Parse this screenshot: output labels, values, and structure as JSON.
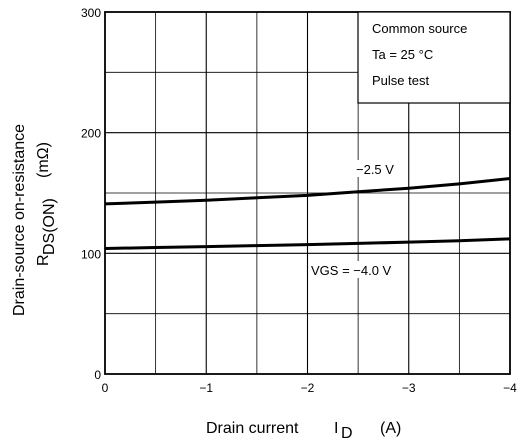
{
  "chart_data": {
    "type": "line",
    "xlabel": "Drain current",
    "xlabel_symbol": "I",
    "xlabel_sub": "D",
    "xlabel_unit": "(A)",
    "ylabel_line1": "Drain-source on-resistance",
    "ylabel_symbol": "R",
    "ylabel_sub": "DS(ON)",
    "ylabel_unit": "(mΩ)",
    "xlim": [
      0,
      -4
    ],
    "ylim": [
      0,
      300
    ],
    "x_ticks": [
      0,
      -1,
      -2,
      -3,
      -4
    ],
    "x_tick_labels": [
      "0",
      "−1",
      "−2",
      "−3",
      "−4"
    ],
    "y_ticks": [
      0,
      100,
      200,
      300
    ],
    "y_tick_labels": [
      "0",
      "100",
      "200",
      "300"
    ],
    "grid": true,
    "conditions": [
      "Common source",
      "Ta = 25 °C",
      "Pulse test"
    ],
    "series": [
      {
        "name": "−2.5 V",
        "x": [
          0,
          -0.5,
          -1,
          -1.5,
          -2,
          -2.5,
          -3,
          -3.5,
          -4
        ],
        "values": [
          141,
          142.5,
          144,
          146,
          148,
          151,
          154,
          157.5,
          162
        ]
      },
      {
        "name": "VGS = −4.0 V",
        "x": [
          0,
          -0.5,
          -1,
          -1.5,
          -2,
          -2.5,
          -3,
          -3.5,
          -4
        ],
        "values": [
          104,
          104.8,
          105.6,
          106.4,
          107.2,
          108.2,
          109.3,
          110.5,
          112
        ]
      }
    ]
  }
}
